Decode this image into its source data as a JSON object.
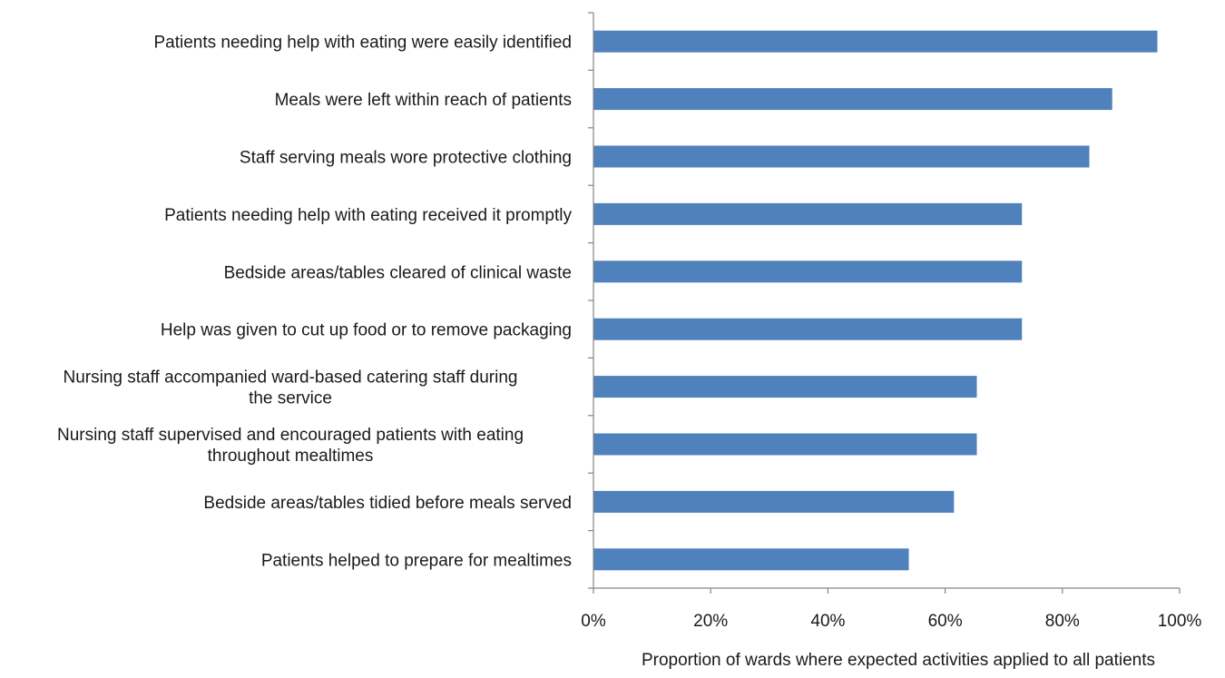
{
  "chart_data": {
    "type": "bar",
    "orientation": "horizontal",
    "categories": [
      [
        "Patients needing help with eating were easily identified"
      ],
      [
        "Meals were left within reach of patients"
      ],
      [
        "Staff serving meals wore protective clothing"
      ],
      [
        "Patients needing help with eating received it promptly"
      ],
      [
        "Bedside areas/tables cleared of clinical waste"
      ],
      [
        "Help was given to cut up food or to remove packaging"
      ],
      [
        "Nursing staff accompanied ward-based catering staff during",
        "the service"
      ],
      [
        "Nursing staff supervised and encouraged patients with eating",
        "throughout mealtimes"
      ],
      [
        "Bedside areas/tables tidied before meals served"
      ],
      [
        "Patients helped to prepare for mealtimes"
      ]
    ],
    "values": [
      96.2,
      88.5,
      84.6,
      73.1,
      73.1,
      73.1,
      65.4,
      65.4,
      61.5,
      53.8
    ],
    "xlim": [
      0,
      100
    ],
    "xticks": [
      0,
      20,
      40,
      60,
      80,
      100
    ],
    "tick_format": "{v}%",
    "xlabel": "Proportion of wards where expected activities applied to all patients",
    "bar_color": "#4f81bd",
    "grid": false,
    "legend": "none"
  }
}
